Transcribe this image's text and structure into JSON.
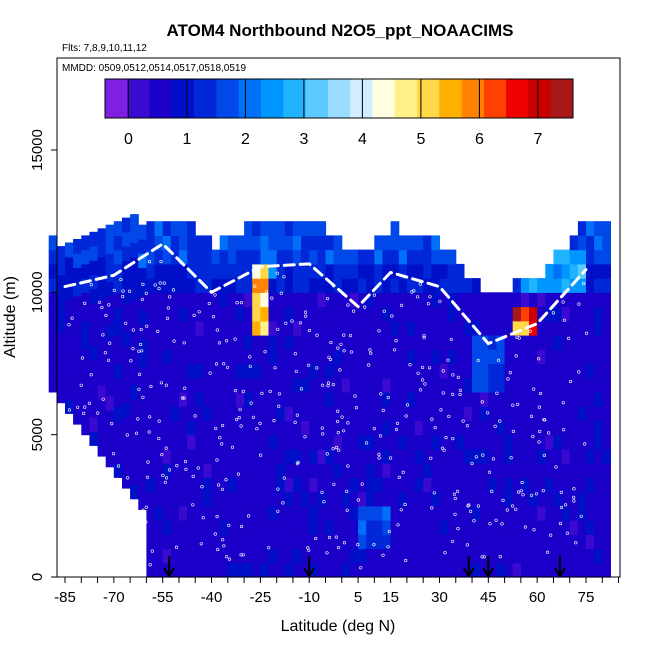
{
  "chart_data": {
    "type": "heatmap",
    "title": "ATOM4 Northbound N2O5_ppt_NOAACIMS",
    "flights_label": "Flts: 7,8,9,10,11,12",
    "dates_label": "MMDD: 0509,0512,0514,0517,0518,0519",
    "xlabel": "Latitude (deg N)",
    "ylabel": "Altitude (m)",
    "xlim": [
      -90,
      85
    ],
    "ylim": [
      0,
      17500
    ],
    "x_ticks": [
      -85,
      -70,
      -55,
      -40,
      -25,
      -10,
      5,
      15,
      30,
      45,
      60,
      75
    ],
    "y_ticks": [
      0,
      5000,
      10000,
      15000
    ],
    "colorbar": {
      "ticks": [
        0,
        1,
        2,
        3,
        4,
        5,
        6,
        7
      ],
      "range": [
        -0.4,
        7.6
      ],
      "colors": [
        "#7f1fe0",
        "#3a0ad0",
        "#1a00c8",
        "#0010c8",
        "#0028d8",
        "#0048e8",
        "#0070f8",
        "#0096ff",
        "#20b4ff",
        "#5ccaff",
        "#9adcff",
        "#d0eeff",
        "#ffffe0",
        "#fff08a",
        "#ffd84a",
        "#ffb000",
        "#ff8200",
        "#ff4000",
        "#ee0000",
        "#c80000",
        "#a81818"
      ]
    },
    "grid": false,
    "legend": "colorbar-top",
    "flight_marker_latitudes": [
      -53,
      -10,
      39,
      45,
      67
    ],
    "white_curtain_profile": [
      [
        -85,
        10200
      ],
      [
        -70,
        10600
      ],
      [
        -55,
        11700
      ],
      [
        -40,
        10000
      ],
      [
        -25,
        10900
      ],
      [
        -10,
        11000
      ],
      [
        5,
        9500
      ],
      [
        15,
        10700
      ],
      [
        30,
        10200
      ],
      [
        45,
        8200
      ],
      [
        60,
        8900
      ],
      [
        75,
        10800
      ]
    ],
    "high_value_regions": [
      {
        "lat": [
          -28,
          -22
        ],
        "alt": [
          8500,
          10800
        ],
        "value": 5.5
      },
      {
        "lat": [
          53,
          59
        ],
        "alt": [
          8400,
          9300
        ],
        "value": 6.8
      },
      {
        "lat": [
          -25,
          -20
        ],
        "alt": [
          10300,
          11200
        ],
        "value": 2.6
      },
      {
        "lat": [
          5,
          15
        ],
        "alt": [
          1000,
          2300
        ],
        "value": 1.8
      },
      {
        "lat": [
          55,
          75
        ],
        "alt": [
          10000,
          11500
        ],
        "value": 2.8
      },
      {
        "lat": [
          40,
          50
        ],
        "alt": [
          6300,
          8500
        ],
        "value": 1.6
      }
    ]
  }
}
